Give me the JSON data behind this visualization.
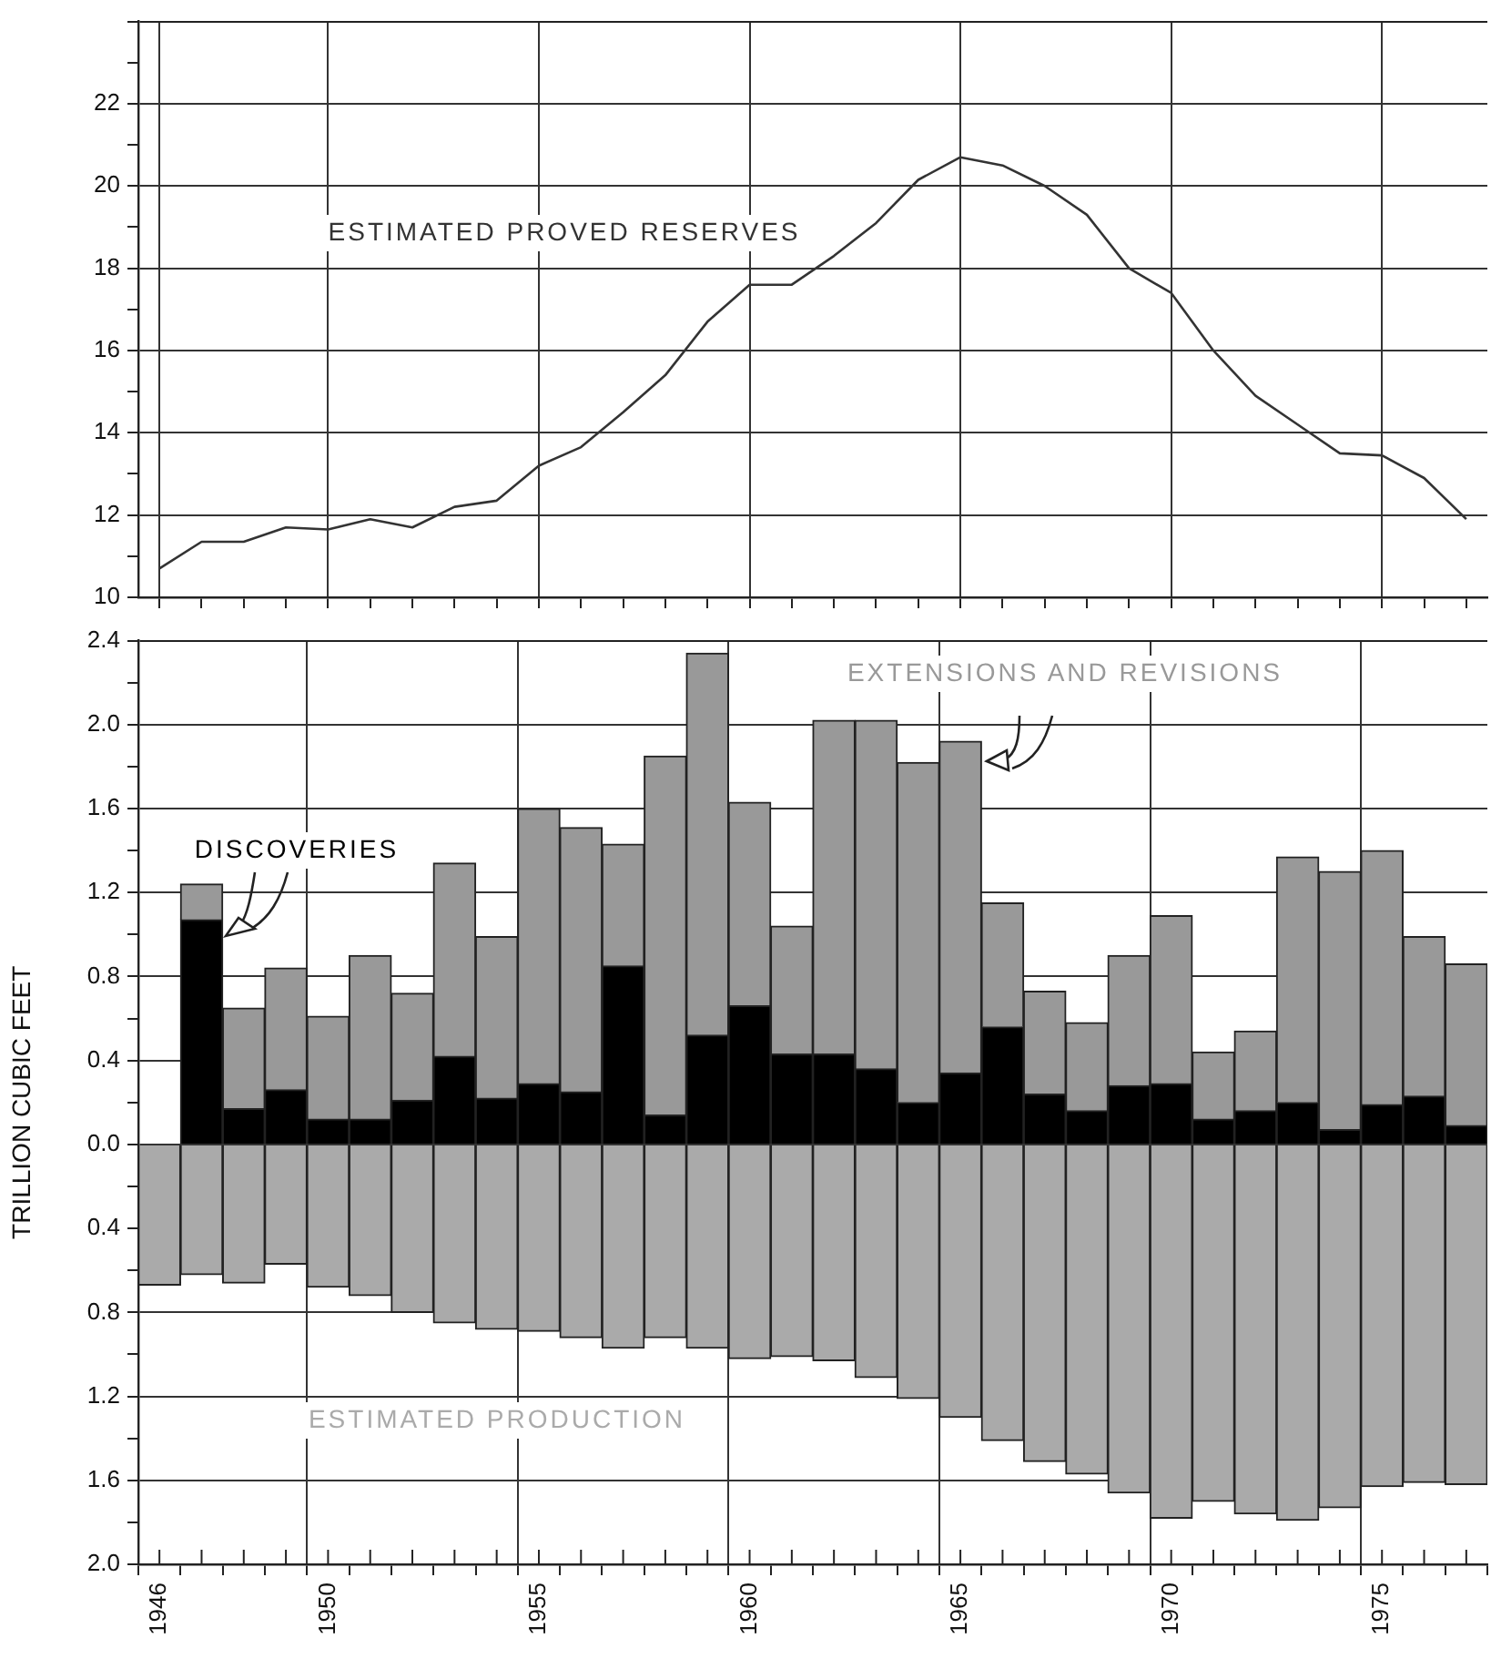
{
  "chart_data": [
    {
      "type": "line",
      "x": [
        1946,
        1947,
        1948,
        1949,
        1950,
        1951,
        1952,
        1953,
        1954,
        1955,
        1956,
        1957,
        1958,
        1959,
        1960,
        1961,
        1962,
        1963,
        1964,
        1965,
        1966,
        1967,
        1968,
        1969,
        1970,
        1971,
        1972,
        1973,
        1974,
        1975,
        1976,
        1977
      ],
      "series": [
        {
          "name": "ESTIMATED PROVED RESERVES",
          "color": "#333333",
          "values": [
            10.7,
            11.35,
            11.35,
            11.7,
            11.65,
            11.9,
            11.7,
            12.2,
            12.35,
            13.2,
            13.65,
            14.5,
            15.4,
            16.7,
            17.6,
            17.6,
            18.3,
            19.1,
            20.15,
            20.7,
            20.5,
            20.0,
            19.3,
            18.0,
            17.4,
            16.0,
            14.9,
            14.2,
            13.5,
            13.45,
            12.9,
            11.9
          ]
        }
      ],
      "xlim": [
        1945.5,
        1977.5
      ],
      "xticks": [
        1946,
        {
          "value": 1947,
          "label": null
        },
        {
          "value": 1948,
          "label": null
        },
        {
          "value": 1949,
          "label": null
        },
        1950,
        {
          "value": 1951,
          "label": null
        },
        {
          "value": 1952,
          "label": null
        },
        {
          "value": 1953,
          "label": null
        },
        {
          "value": 1954,
          "label": null
        },
        1955,
        {
          "value": 1956,
          "label": null
        },
        {
          "value": 1957,
          "label": null
        },
        {
          "value": 1958,
          "label": null
        },
        {
          "value": 1959,
          "label": null
        },
        1960,
        {
          "value": 1961,
          "label": null
        },
        {
          "value": 1962,
          "label": null
        },
        {
          "value": 1963,
          "label": null
        },
        {
          "value": 1964,
          "label": null
        },
        1965,
        {
          "value": 1966,
          "label": null
        },
        {
          "value": 1967,
          "label": null
        },
        {
          "value": 1968,
          "label": null
        },
        {
          "value": 1969,
          "label": null
        },
        1970,
        {
          "value": 1971,
          "label": null
        },
        {
          "value": 1972,
          "label": null
        },
        {
          "value": 1973,
          "label": null
        },
        {
          "value": 1974,
          "label": null
        },
        1975,
        {
          "value": 1976,
          "label": null
        },
        {
          "value": 1977,
          "label": null
        }
      ],
      "ylim": [
        10,
        24
      ],
      "yticks": [
        10,
        {
          "value": 11,
          "label": null
        },
        12,
        {
          "value": 13,
          "label": null
        },
        14,
        {
          "value": 15,
          "label": null
        },
        16,
        {
          "value": 17,
          "label": null
        },
        18,
        {
          "value": 19,
          "label": null
        },
        20,
        {
          "value": 21,
          "label": null
        },
        22,
        {
          "value": 23,
          "label": null
        },
        {
          "value": 24,
          "label": null
        }
      ],
      "grid": true,
      "tick_labels": "y",
      "marker": "none"
    },
    {
      "type": "bar",
      "stacked": true,
      "ylabel": "TRILLION CUBIC FEET",
      "x": [
        1946,
        1947,
        1948,
        1949,
        1950,
        1951,
        1952,
        1953,
        1954,
        1955,
        1956,
        1957,
        1958,
        1959,
        1960,
        1961,
        1962,
        1963,
        1964,
        1965,
        1966,
        1967,
        1968,
        1969,
        1970,
        1971,
        1972,
        1973,
        1974,
        1975,
        1976,
        1977
      ],
      "series": [
        {
          "name": "DISCOVERIES",
          "color": "#000000",
          "values": [
            null,
            1.07,
            0.17,
            0.26,
            0.12,
            0.12,
            0.21,
            0.42,
            0.22,
            0.29,
            0.25,
            0.85,
            0.14,
            0.52,
            0.66,
            0.43,
            0.43,
            0.36,
            0.2,
            0.34,
            0.56,
            0.24,
            0.16,
            0.28,
            0.29,
            0.12,
            0.16,
            0.2,
            0.07,
            0.19,
            0.23,
            0.09
          ]
        },
        {
          "name": "EXTENSIONS AND REVISIONS",
          "color": "#999999",
          "values": [
            null,
            0.17,
            0.48,
            0.58,
            0.49,
            0.78,
            0.51,
            0.92,
            0.77,
            1.31,
            1.26,
            0.58,
            1.71,
            1.82,
            0.97,
            0.61,
            1.59,
            1.66,
            1.62,
            1.58,
            0.59,
            0.49,
            0.42,
            0.62,
            0.8,
            0.32,
            0.38,
            1.17,
            1.23,
            1.21,
            0.76,
            0.77
          ]
        },
        {
          "name": "ESTIMATED PRODUCTION",
          "color": "#aaaaaa",
          "values": [
            -0.67,
            -0.62,
            -0.66,
            -0.57,
            -0.68,
            -0.72,
            -0.8,
            -0.85,
            -0.88,
            -0.89,
            -0.92,
            -0.97,
            -0.92,
            -0.97,
            -1.02,
            -1.01,
            -1.03,
            -1.11,
            -1.21,
            -1.3,
            -1.41,
            -1.51,
            -1.57,
            -1.66,
            -1.78,
            -1.7,
            -1.76,
            -1.79,
            -1.73,
            -1.63,
            -1.61,
            -1.62
          ]
        }
      ],
      "xlim": [
        1945.5,
        1977.5
      ],
      "xticks": [
        1946,
        {
          "value": 1947,
          "label": null
        },
        {
          "value": 1948,
          "label": null
        },
        {
          "value": 1949,
          "label": null
        },
        1950,
        {
          "value": 1951,
          "label": null
        },
        {
          "value": 1952,
          "label": null
        },
        {
          "value": 1953,
          "label": null
        },
        {
          "value": 1954,
          "label": null
        },
        1955,
        {
          "value": 1956,
          "label": null
        },
        {
          "value": 1957,
          "label": null
        },
        {
          "value": 1958,
          "label": null
        },
        {
          "value": 1959,
          "label": null
        },
        1960,
        {
          "value": 1961,
          "label": null
        },
        {
          "value": 1962,
          "label": null
        },
        {
          "value": 1963,
          "label": null
        },
        {
          "value": 1964,
          "label": null
        },
        1965,
        {
          "value": 1966,
          "label": null
        },
        {
          "value": 1967,
          "label": null
        },
        {
          "value": 1968,
          "label": null
        },
        {
          "value": 1969,
          "label": null
        },
        1970,
        {
          "value": 1971,
          "label": null
        },
        {
          "value": 1972,
          "label": null
        },
        {
          "value": 1973,
          "label": null
        },
        {
          "value": 1974,
          "label": null
        },
        1975,
        {
          "value": 1976,
          "label": null
        },
        {
          "value": 1977,
          "label": null
        }
      ],
      "ylim": [
        -2.0,
        2.4
      ],
      "yticks": [
        {
          "value": -2.0,
          "label": "2.0"
        },
        {
          "value": -1.8,
          "label": null
        },
        {
          "value": -1.6,
          "label": "1.6"
        },
        {
          "value": -1.4,
          "label": null
        },
        {
          "value": -1.2,
          "label": "1.2"
        },
        {
          "value": -1.0,
          "label": null
        },
        {
          "value": -0.8,
          "label": "0.8"
        },
        {
          "value": -0.6,
          "label": null
        },
        {
          "value": -0.4,
          "label": "0.4"
        },
        {
          "value": -0.2,
          "label": null
        },
        {
          "value": 0,
          "label": "0.0"
        },
        {
          "value": 0.2,
          "label": null
        },
        0.4,
        {
          "value": 0.6,
          "label": null
        },
        0.8,
        {
          "value": 1.0,
          "label": null
        },
        1.2,
        {
          "value": 1.4,
          "label": null
        },
        1.6,
        {
          "value": 1.8,
          "label": null
        },
        {
          "value": 2.0,
          "label": "2.0"
        },
        {
          "value": 2.2,
          "label": null
        },
        2.4
      ],
      "grid": true
    }
  ]
}
